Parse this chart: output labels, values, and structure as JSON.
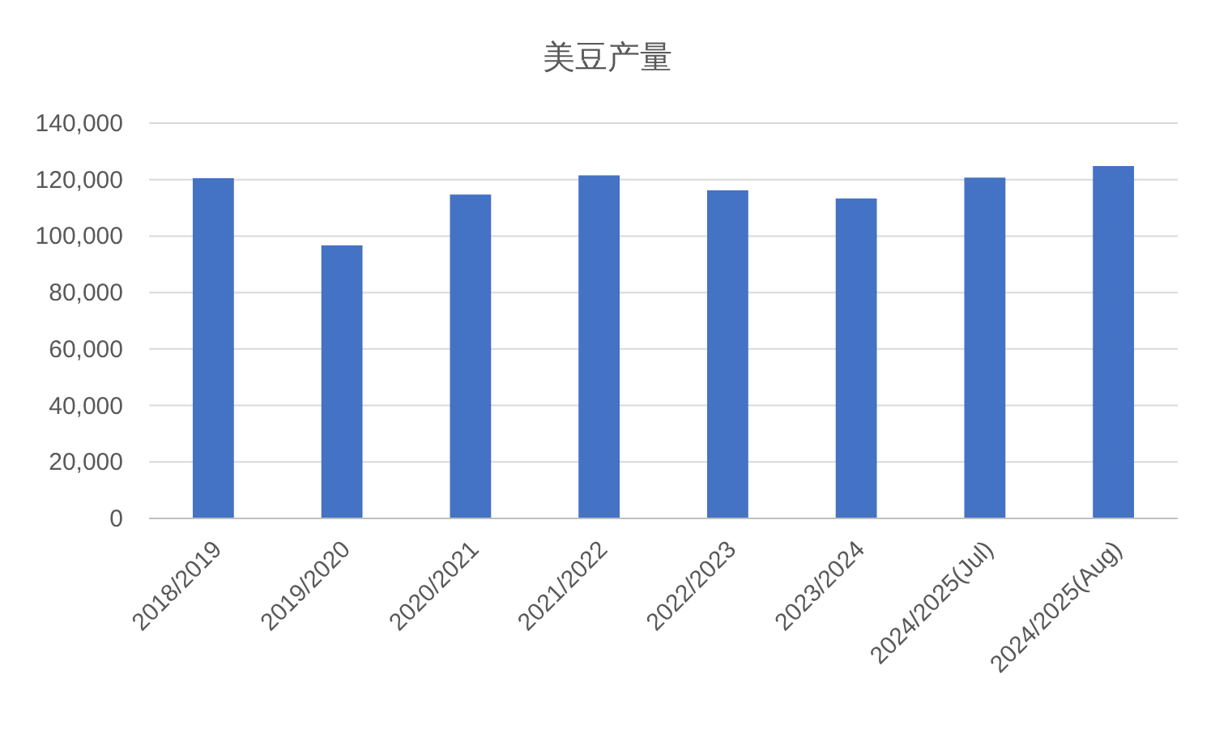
{
  "chart_data": {
    "type": "bar",
    "title": "美豆产量",
    "categories": [
      "2018/2019",
      "2019/2020",
      "2020/2021",
      "2021/2022",
      "2022/2023",
      "2023/2024",
      "2024/2025(Jul)",
      "2024/2025(Aug)"
    ],
    "values": [
      120500,
      96700,
      114700,
      121500,
      116200,
      113300,
      120700,
      124800
    ],
    "color": "#4472c4",
    "ylim": [
      0,
      140000
    ],
    "yticks": [
      {
        "value": 0,
        "label": "0"
      },
      {
        "value": 20000,
        "label": "20,000"
      },
      {
        "value": 40000,
        "label": "40,000"
      },
      {
        "value": 60000,
        "label": "60,000"
      },
      {
        "value": 80000,
        "label": "80,000"
      },
      {
        "value": 100000,
        "label": "100,000"
      },
      {
        "value": 120000,
        "label": "120,000"
      },
      {
        "value": 140000,
        "label": "140,000"
      }
    ],
    "grid": "y"
  }
}
